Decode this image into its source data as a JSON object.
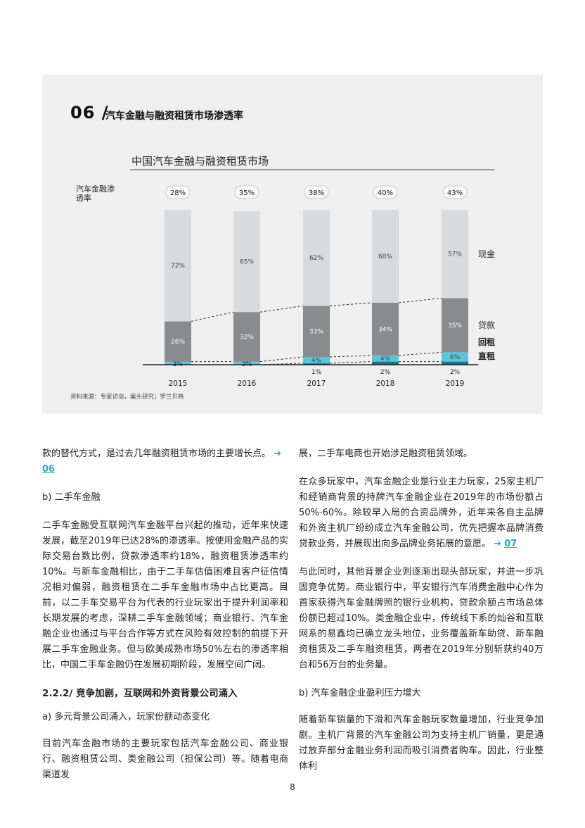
{
  "figure": {
    "number": "06 /",
    "title": "汽车金融与融资租赁市场渗透率",
    "chart_title": "中国汽车金融与融资租赁市场",
    "source": "资料来源：专家访谈，案头研究；罗兰贝格"
  },
  "chart_data": {
    "type": "bar",
    "stacked": true,
    "title": "中国汽车金融与融资租赁市场",
    "categories": [
      "2015",
      "2016",
      "2017",
      "2018",
      "2019"
    ],
    "penetration_label": "汽车金融渗透率",
    "penetration": [
      "28%",
      "35%",
      "38%",
      "40%",
      "43%"
    ],
    "series": [
      {
        "name": "直租",
        "values": [
          0,
          0,
          1,
          2,
          2
        ],
        "labels": [
          "",
          "",
          "1%",
          "2%",
          "2%"
        ],
        "color": "#1a6f8c"
      },
      {
        "name": "回租",
        "values": [
          2,
          2,
          4,
          4,
          6
        ],
        "labels": [
          "2%",
          "2%",
          "4%",
          "4%",
          "6%"
        ],
        "color": "#5cc5d8"
      },
      {
        "name": "贷款",
        "values": [
          26,
          32,
          33,
          34,
          35
        ],
        "labels": [
          "26%",
          "32%",
          "33%",
          "34%",
          "35%"
        ],
        "color": "#8a8b8f"
      },
      {
        "name": "现金",
        "values": [
          72,
          65,
          62,
          60,
          57
        ],
        "labels": [
          "72%",
          "65%",
          "62%",
          "60%",
          "57%"
        ],
        "color": "#d9dadc"
      }
    ],
    "ylim": [
      0,
      100
    ],
    "legend_position": "right"
  },
  "body": {
    "left_col": {
      "p1": "款的替代方式，是过去几年融资租赁市场的主要增长点。",
      "p1_ref": "06",
      "p2": "b) 二手车金融",
      "p3": "二手车金融受互联网汽车金融平台兴起的推动，近年来快速发展，截至2019年已达28%的渗透率。按使用金融产品的实际交易台数比例，贷款渗透率约18%，融资租赁渗透率约10%。与新车金融相比，由于二手车估值困难且客户征信情况相对偏弱，融资租赁在二手车金融市场中占比更高。目前，以二手车交易平台为代表的行业玩家出于提升利润率和长期发展的考虑，深耕二手车金融领域；商业银行、汽车金融企业也通过与平台合作等方式在风险有效控制的前提下开展二手车金融业务。但与欧美成熟市场50%左右的渗透率相比，中国二手车金融仍在发展初期阶段，发展空间广阔。",
      "heading": "2.2.2/ 竞争加剧，互联网和外资背景公司涌入",
      "p4": "a) 多元背景公司涌入，玩家份额动态变化",
      "p5": "目前汽车金融市场的主要玩家包括汽车金融公司、商业银行、融资租赁公司、类金融公司（担保公司）等。随着电商渠道发"
    },
    "right_col": {
      "p1": "展，二手车电商也开始涉足融资租赁领域。",
      "p2": "在众多玩家中，汽车金融企业是行业主力玩家，25家主机厂和经销商背景的持牌汽车金融企业在2019年的市场份额占50%-60%。除较早入局的合资品牌外，近年来各自主品牌和外资主机厂纷纷成立汽车金融公司，优先把握本品牌消费贷款业务，并展现出向多品牌业务拓展的意愿。",
      "p2_ref": "07",
      "p3": "与此同时，其他背景企业则逐渐出现头部玩家，并进一步巩固竞争优势。商业银行中，平安银行汽车消费金融中心作为首家获得汽车金融牌照的银行业机构，贷款余额占市场总体份额已超过10%。类金融企业中，传统线下系的灿谷和互联网系的易鑫均已确立龙头地位，业务覆盖新车助贷、新车融资租赁及二手车融资租赁，两者在2019年分别斩获约40万台和56万台的业务量。",
      "p4": "b) 汽车金融企业盈利压力增大",
      "p5": "随着新车销量的下滑和汽车金融玩家数量增加，行业竞争加剧。主机厂背景的汽车金融公司为支持主机厂销量，更是通过放弃部分金融业务利润而吸引消费者购车。因此，行业整体利"
    }
  },
  "page_number": "8"
}
